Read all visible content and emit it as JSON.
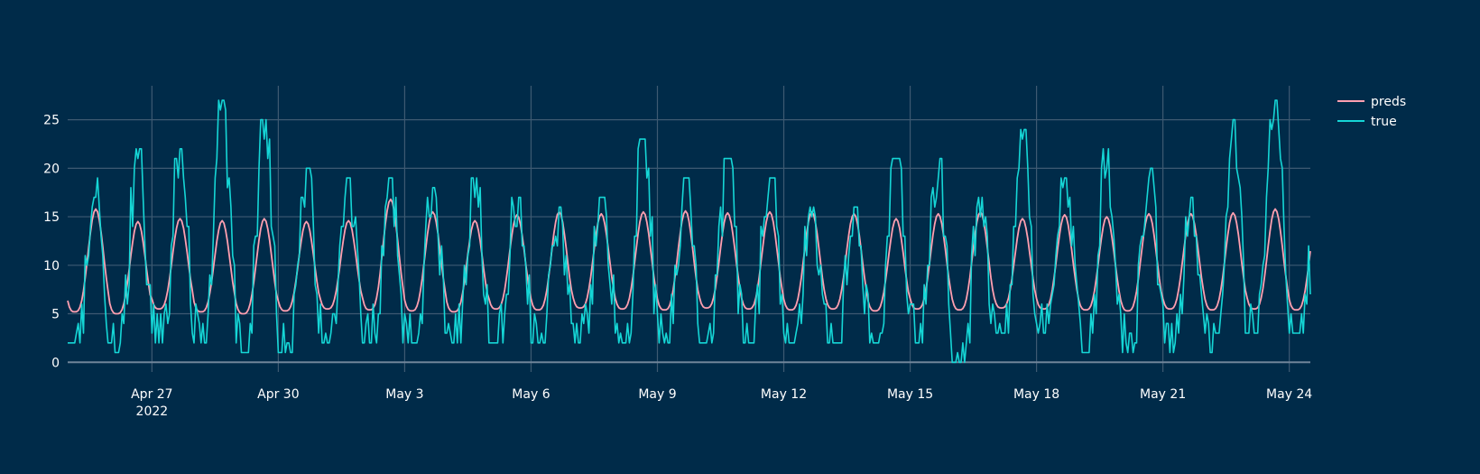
{
  "colors": {
    "background": "#002b49",
    "grid": "#3e5a72",
    "preds": "#ff9fb0",
    "true": "#15d6d6"
  },
  "chart_data": {
    "type": "line",
    "title": "",
    "xlabel": "",
    "ylabel": "",
    "x_start": "2022-04-25 00:00",
    "x_end": "2022-05-24 12:00",
    "sampling": "hourly",
    "xlim": [
      "2022-04-25 00:00",
      "2022-05-24 12:00"
    ],
    "ylim": [
      -1,
      28.5
    ],
    "y_ticks": [
      0,
      5,
      10,
      15,
      20,
      25
    ],
    "x_ticks": [
      {
        "date": "2022-04-27",
        "label": "Apr 27",
        "sublabel": "2022"
      },
      {
        "date": "2022-04-30",
        "label": "Apr 30",
        "sublabel": ""
      },
      {
        "date": "2022-05-03",
        "label": "May 3",
        "sublabel": ""
      },
      {
        "date": "2022-05-06",
        "label": "May 6",
        "sublabel": ""
      },
      {
        "date": "2022-05-09",
        "label": "May 9",
        "sublabel": ""
      },
      {
        "date": "2022-05-12",
        "label": "May 12",
        "sublabel": ""
      },
      {
        "date": "2022-05-15",
        "label": "May 15",
        "sublabel": ""
      },
      {
        "date": "2022-05-18",
        "label": "May 18",
        "sublabel": ""
      },
      {
        "date": "2022-05-21",
        "label": "May 21",
        "sublabel": ""
      },
      {
        "date": "2022-05-24",
        "label": "May 24",
        "sublabel": ""
      }
    ],
    "grid": true,
    "legend_position": "top-right",
    "series": [
      {
        "name": "preds",
        "color": "#ff9fb0",
        "daily_values": [
          {
            "date": "2022-04-25",
            "low": 5.2,
            "high": 15.8
          },
          {
            "date": "2022-04-26",
            "low": 5.0,
            "high": 14.5
          },
          {
            "date": "2022-04-27",
            "low": 5.5,
            "high": 14.8
          },
          {
            "date": "2022-04-28",
            "low": 5.2,
            "high": 14.6
          },
          {
            "date": "2022-04-29",
            "low": 5.0,
            "high": 14.8
          },
          {
            "date": "2022-04-30",
            "low": 5.3,
            "high": 14.5
          },
          {
            "date": "2022-05-01",
            "low": 5.5,
            "high": 14.6
          },
          {
            "date": "2022-05-02",
            "low": 5.4,
            "high": 16.8
          },
          {
            "date": "2022-05-03",
            "low": 5.3,
            "high": 15.5
          },
          {
            "date": "2022-05-04",
            "low": 5.2,
            "high": 14.6
          },
          {
            "date": "2022-05-05",
            "low": 5.5,
            "high": 15.2
          },
          {
            "date": "2022-05-06",
            "low": 5.4,
            "high": 15.5
          },
          {
            "date": "2022-05-07",
            "low": 5.6,
            "high": 15.3
          },
          {
            "date": "2022-05-08",
            "low": 5.5,
            "high": 15.5
          },
          {
            "date": "2022-05-09",
            "low": 5.4,
            "high": 15.6
          },
          {
            "date": "2022-05-10",
            "low": 5.6,
            "high": 15.4
          },
          {
            "date": "2022-05-11",
            "low": 5.5,
            "high": 15.5
          },
          {
            "date": "2022-05-12",
            "low": 5.4,
            "high": 15.5
          },
          {
            "date": "2022-05-13",
            "low": 5.5,
            "high": 15.3
          },
          {
            "date": "2022-05-14",
            "low": 5.3,
            "high": 14.8
          },
          {
            "date": "2022-05-15",
            "low": 5.5,
            "high": 15.3
          },
          {
            "date": "2022-05-16",
            "low": 5.4,
            "high": 15.5
          },
          {
            "date": "2022-05-17",
            "low": 5.6,
            "high": 14.8
          },
          {
            "date": "2022-05-18",
            "low": 5.5,
            "high": 15.2
          },
          {
            "date": "2022-05-19",
            "low": 5.4,
            "high": 15.0
          },
          {
            "date": "2022-05-20",
            "low": 5.3,
            "high": 15.3
          },
          {
            "date": "2022-05-21",
            "low": 5.5,
            "high": 15.3
          },
          {
            "date": "2022-05-22",
            "low": 5.4,
            "high": 15.4
          },
          {
            "date": "2022-05-23",
            "low": 5.5,
            "high": 15.8
          },
          {
            "date": "2022-05-24",
            "low": 5.4,
            "high": 15.0
          }
        ]
      },
      {
        "name": "true",
        "color": "#15d6d6",
        "daily_values": [
          {
            "date": "2022-04-25",
            "low": 2,
            "high": 19
          },
          {
            "date": "2022-04-26",
            "low": 1,
            "high": 22
          },
          {
            "date": "2022-04-27",
            "low": 2,
            "high": 22
          },
          {
            "date": "2022-04-28",
            "low": 2,
            "high": 27
          },
          {
            "date": "2022-04-29",
            "low": 1,
            "high": 25
          },
          {
            "date": "2022-04-30",
            "low": 1,
            "high": 20
          },
          {
            "date": "2022-05-01",
            "low": 2,
            "high": 19
          },
          {
            "date": "2022-05-02",
            "low": 2,
            "high": 19
          },
          {
            "date": "2022-05-03",
            "low": 2,
            "high": 18
          },
          {
            "date": "2022-05-04",
            "low": 2,
            "high": 19
          },
          {
            "date": "2022-05-05",
            "low": 2,
            "high": 17
          },
          {
            "date": "2022-05-06",
            "low": 2,
            "high": 16
          },
          {
            "date": "2022-05-07",
            "low": 2,
            "high": 17
          },
          {
            "date": "2022-05-08",
            "low": 2,
            "high": 23
          },
          {
            "date": "2022-05-09",
            "low": 2,
            "high": 19
          },
          {
            "date": "2022-05-10",
            "low": 2,
            "high": 21
          },
          {
            "date": "2022-05-11",
            "low": 2,
            "high": 19
          },
          {
            "date": "2022-05-12",
            "low": 2,
            "high": 16
          },
          {
            "date": "2022-05-13",
            "low": 2,
            "high": 16
          },
          {
            "date": "2022-05-14",
            "low": 2,
            "high": 21
          },
          {
            "date": "2022-05-15",
            "low": 2,
            "high": 21
          },
          {
            "date": "2022-05-16",
            "low": 0,
            "high": 17
          },
          {
            "date": "2022-05-17",
            "low": 3,
            "high": 24
          },
          {
            "date": "2022-05-18",
            "low": 3,
            "high": 19
          },
          {
            "date": "2022-05-19",
            "low": 1,
            "high": 22
          },
          {
            "date": "2022-05-20",
            "low": 1,
            "high": 20
          },
          {
            "date": "2022-05-21",
            "low": 1,
            "high": 17
          },
          {
            "date": "2022-05-22",
            "low": 1,
            "high": 25
          },
          {
            "date": "2022-05-23",
            "low": 3,
            "high": 27
          },
          {
            "date": "2022-05-24",
            "low": 3,
            "high": 15
          }
        ]
      }
    ]
  }
}
